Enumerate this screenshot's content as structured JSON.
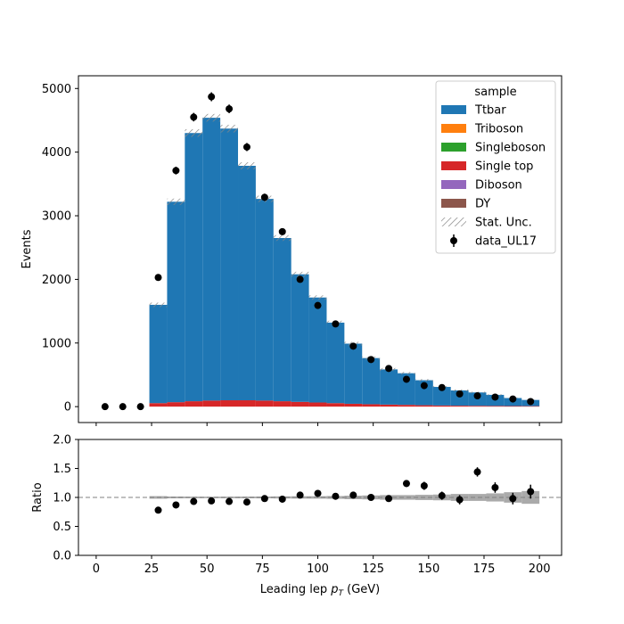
{
  "chart_data": [
    {
      "type": "bar",
      "panel": "main",
      "ylabel": "Events",
      "xlim": [
        -8,
        210
      ],
      "ylim": [
        -250,
        5200
      ],
      "yticks": [
        0,
        1000,
        2000,
        3000,
        4000,
        5000
      ],
      "bin_edges": [
        24,
        32,
        40,
        48,
        56,
        64,
        72,
        80,
        88,
        96,
        104,
        112,
        120,
        128,
        136,
        144,
        152,
        160,
        168,
        176,
        184,
        192,
        200
      ],
      "legend": {
        "title": "sample",
        "position": "top-right",
        "entries": [
          "Ttbar",
          "Triboson",
          "Singleboson",
          "Single top",
          "Diboson",
          "DY",
          "Stat. Unc.",
          "data_UL17"
        ]
      },
      "series": [
        {
          "name": "Single top",
          "color": "#d62728",
          "values": [
            55,
            70,
            85,
            95,
            100,
            100,
            95,
            85,
            75,
            65,
            55,
            45,
            38,
            32,
            28,
            22,
            18,
            15,
            13,
            11,
            9,
            8
          ]
        },
        {
          "name": "Ttbar",
          "color": "#1f77b4",
          "values": [
            1545,
            3150,
            4215,
            4445,
            4270,
            3685,
            3170,
            2565,
            2005,
            1650,
            1265,
            945,
            725,
            553,
            497,
            393,
            292,
            240,
            210,
            174,
            126,
            97
          ]
        },
        {
          "name": "Triboson",
          "color": "#ff7f0e",
          "values": []
        },
        {
          "name": "Singleboson",
          "color": "#2ca02c",
          "values": []
        },
        {
          "name": "Diboson",
          "color": "#9467bd",
          "values": []
        },
        {
          "name": "DY",
          "color": "#8c564b",
          "values": []
        }
      ],
      "stat_unc": [
        35,
        50,
        60,
        60,
        60,
        55,
        50,
        45,
        40,
        35,
        30,
        28,
        25,
        22,
        20,
        18,
        15,
        15,
        12,
        10,
        10,
        8
      ],
      "data": {
        "name": "data_UL17",
        "x": [
          4,
          12,
          20,
          28,
          36,
          44,
          52,
          60,
          68,
          76,
          84,
          92,
          100,
          108,
          116,
          124,
          132,
          140,
          148,
          156,
          164,
          172,
          180,
          188,
          196
        ],
        "y": [
          0,
          0,
          0,
          2030,
          3710,
          4550,
          4870,
          4680,
          4080,
          3290,
          2750,
          2000,
          1590,
          1300,
          950,
          740,
          600,
          430,
          330,
          300,
          200,
          170,
          150,
          120,
          80
        ],
        "yerr": [
          0,
          0,
          0,
          45,
          61,
          67,
          70,
          68,
          64,
          57,
          52,
          45,
          40,
          36,
          31,
          27,
          24,
          21,
          18,
          17,
          14,
          13,
          12,
          11,
          9
        ]
      }
    },
    {
      "type": "scatter",
      "panel": "ratio",
      "xlabel_prefix": "Leading lep ",
      "xlabel_var": "p",
      "xlabel_sub": "T",
      "xlabel_suffix": " (GeV)",
      "ylabel": "Ratio",
      "xlim": [
        -8,
        210
      ],
      "ylim": [
        0,
        2
      ],
      "xticks": [
        0,
        25,
        50,
        75,
        100,
        125,
        150,
        175,
        200
      ],
      "yticks": [
        "0.0",
        "0.5",
        "1.0",
        "1.5",
        "2.0"
      ],
      "reference_line": 1.0,
      "x": [
        28,
        36,
        44,
        52,
        60,
        68,
        76,
        84,
        92,
        100,
        108,
        116,
        124,
        132,
        140,
        148,
        156,
        164,
        172,
        180,
        188,
        196
      ],
      "y": [
        0.78,
        0.87,
        0.93,
        0.94,
        0.93,
        0.92,
        0.98,
        0.97,
        1.04,
        1.07,
        1.02,
        1.04,
        1.0,
        0.98,
        1.24,
        1.2,
        1.03,
        0.96,
        1.44,
        1.17,
        0.98,
        1.1
      ],
      "yerr": [
        0.02,
        0.02,
        0.02,
        0.02,
        0.02,
        0.02,
        0.02,
        0.03,
        0.03,
        0.03,
        0.03,
        0.04,
        0.04,
        0.05,
        0.06,
        0.07,
        0.07,
        0.08,
        0.08,
        0.09,
        0.1,
        0.12
      ],
      "unc_band": [
        0.022,
        0.016,
        0.014,
        0.013,
        0.014,
        0.015,
        0.016,
        0.018,
        0.02,
        0.021,
        0.024,
        0.03,
        0.034,
        0.04,
        0.04,
        0.045,
        0.05,
        0.06,
        0.06,
        0.07,
        0.09,
        0.11
      ]
    }
  ]
}
